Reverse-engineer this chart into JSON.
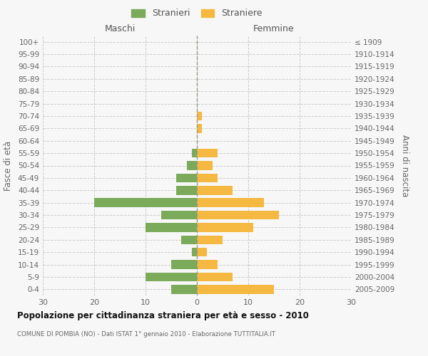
{
  "age_groups": [
    "0-4",
    "5-9",
    "10-14",
    "15-19",
    "20-24",
    "25-29",
    "30-34",
    "35-39",
    "40-44",
    "45-49",
    "50-54",
    "55-59",
    "60-64",
    "65-69",
    "70-74",
    "75-79",
    "80-84",
    "85-89",
    "90-94",
    "95-99",
    "100+"
  ],
  "birth_years": [
    "2005-2009",
    "2000-2004",
    "1995-1999",
    "1990-1994",
    "1985-1989",
    "1980-1984",
    "1975-1979",
    "1970-1974",
    "1965-1969",
    "1960-1964",
    "1955-1959",
    "1950-1954",
    "1945-1949",
    "1940-1944",
    "1935-1939",
    "1930-1934",
    "1925-1929",
    "1920-1924",
    "1915-1919",
    "1910-1914",
    "≤ 1909"
  ],
  "maschi": [
    5,
    10,
    5,
    1,
    3,
    10,
    7,
    20,
    4,
    4,
    2,
    1,
    0,
    0,
    0,
    0,
    0,
    0,
    0,
    0,
    0
  ],
  "femmine": [
    15,
    7,
    4,
    2,
    5,
    11,
    16,
    13,
    7,
    4,
    3,
    4,
    0,
    1,
    1,
    0,
    0,
    0,
    0,
    0,
    0
  ],
  "maschi_color": "#7aaa5a",
  "femmine_color": "#f5b942",
  "background_color": "#f7f7f7",
  "grid_color": "#cccccc",
  "title": "Popolazione per cittadinanza straniera per età e sesso - 2010",
  "subtitle": "COMUNE DI POMBIA (NO) - Dati ISTAT 1° gennaio 2010 - Elaborazione TUTTITALIA.IT",
  "ylabel_left": "Fasce di età",
  "ylabel_right": "Anni di nascita",
  "xlabel_left": "Maschi",
  "xlabel_right": "Femmine",
  "legend_maschi": "Stranieri",
  "legend_femmine": "Straniere",
  "xlim": 30,
  "bar_height": 0.72
}
